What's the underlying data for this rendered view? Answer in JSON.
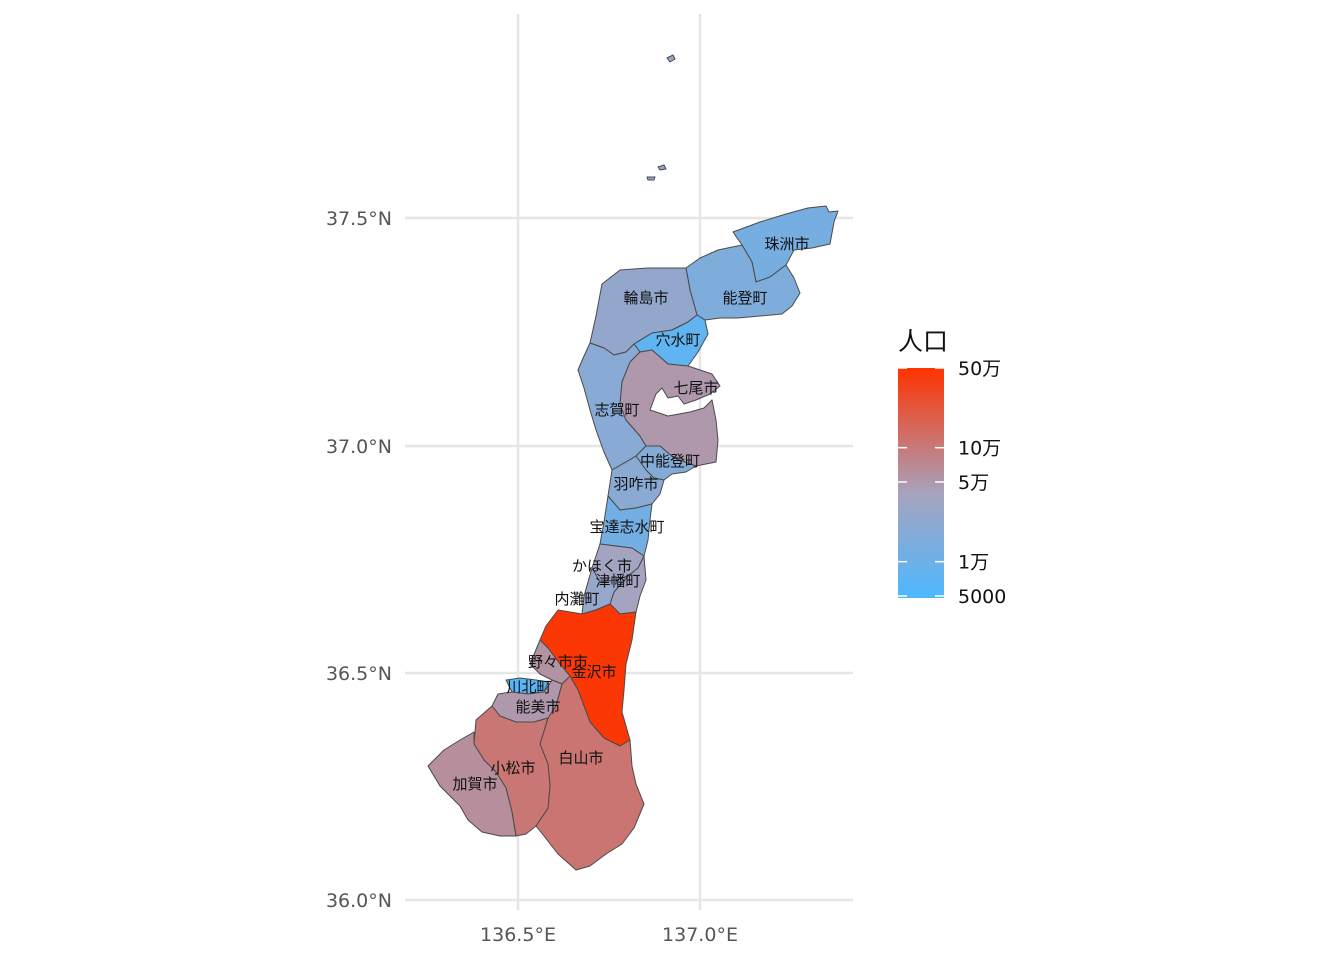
{
  "map": {
    "title": "",
    "lon_range": [
      136.2,
      137.4
    ],
    "lat_range": [
      35.98,
      37.93
    ],
    "x_axis": {
      "ticks": [
        {
          "value": 136.5,
          "label": "136.5°E"
        },
        {
          "value": 137.0,
          "label": "137.0°E"
        }
      ]
    },
    "y_axis": {
      "ticks": [
        {
          "value": 36.0,
          "label": "36.0°N"
        },
        {
          "value": 36.5,
          "label": "36.5°N"
        },
        {
          "value": 37.0,
          "label": "37.0°N"
        },
        {
          "value": 37.5,
          "label": "37.5°N"
        }
      ]
    },
    "grid": true,
    "fill_variable": "人口",
    "scale": "log",
    "colors": {
      "low": "#4db8ff",
      "mid": "#a6a3bf",
      "high": "#ff3300",
      "border": "#4a4a4a",
      "grid": "#e6e6e6"
    },
    "municipalities": [
      {
        "name": "珠洲市",
        "population": 13000
      },
      {
        "name": "輪島市",
        "population": 25000
      },
      {
        "name": "能登町",
        "population": 15000
      },
      {
        "name": "穴水町",
        "population": 7500
      },
      {
        "name": "七尾市",
        "population": 50000
      },
      {
        "name": "志賀町",
        "population": 19000
      },
      {
        "name": "中能登町",
        "population": 17000
      },
      {
        "name": "羽咋市",
        "population": 20000
      },
      {
        "name": "宝達志水町",
        "population": 12000
      },
      {
        "name": "かほく市",
        "population": 35000
      },
      {
        "name": "津幡町",
        "population": 37000
      },
      {
        "name": "内灘町",
        "population": 26000
      },
      {
        "name": "金沢市",
        "population": 460000
      },
      {
        "name": "野々市市",
        "population": 57000
      },
      {
        "name": "川北町",
        "population": 6200
      },
      {
        "name": "能美市",
        "population": 50000
      },
      {
        "name": "白山市",
        "population": 110000
      },
      {
        "name": "小松市",
        "population": 105000
      },
      {
        "name": "加賀市",
        "population": 63000
      }
    ]
  },
  "legend": {
    "title": "人口",
    "position": "right",
    "breaks": [
      {
        "value": 500000,
        "label": "50万"
      },
      {
        "value": 100000,
        "label": "10万"
      },
      {
        "value": 50000,
        "label": "5万"
      },
      {
        "value": 10000,
        "label": "1万"
      },
      {
        "value": 5000,
        "label": "5000"
      }
    ],
    "range": [
      4800,
      500000
    ]
  }
}
